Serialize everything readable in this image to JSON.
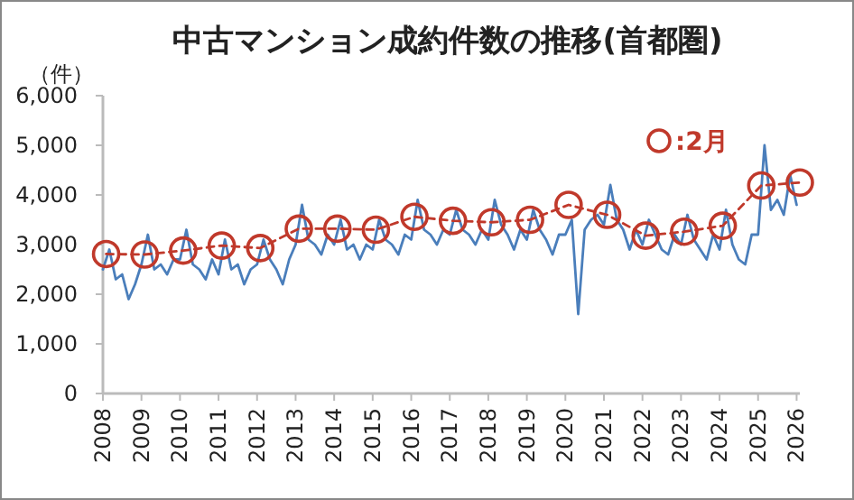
{
  "chart_data": {
    "type": "line",
    "title": "中古マンション成約件数の推移(首都圏)",
    "ylabel": "（件）",
    "xlim": [
      "2008-01",
      "2026-02"
    ],
    "xticks": [
      "2008",
      "2009",
      "2010",
      "2011",
      "2012",
      "2013",
      "2014",
      "2015",
      "2016",
      "2017",
      "2018",
      "2019",
      "2020",
      "2021",
      "2022",
      "2023",
      "2024",
      "2025",
      "2026"
    ],
    "ylim": [
      0,
      6000
    ],
    "yticks": [
      {
        "value": 0,
        "label": "0"
      },
      {
        "value": 1000,
        "label": "1,000"
      },
      {
        "value": 2000,
        "label": "2,000"
      },
      {
        "value": 3000,
        "label": "3,000"
      },
      {
        "value": 4000,
        "label": "4,000"
      },
      {
        "value": 5000,
        "label": "5,000"
      },
      {
        "value": 6000,
        "label": "6,000"
      }
    ],
    "grid": false,
    "legend": "top right",
    "series": [
      {
        "type": "line",
        "color": "#4a7ebb",
        "marker": "none",
        "line_style": "solid",
        "x": [
          "2008-01",
          "2008-03",
          "2008-05",
          "2008-07",
          "2008-09",
          "2008-11",
          "2009-01",
          "2009-03",
          "2009-05",
          "2009-07",
          "2009-09",
          "2009-11",
          "2010-01",
          "2010-03",
          "2010-05",
          "2010-07",
          "2010-09",
          "2010-11",
          "2011-01",
          "2011-03",
          "2011-05",
          "2011-07",
          "2011-09",
          "2011-11",
          "2012-01",
          "2012-03",
          "2012-05",
          "2012-07",
          "2012-09",
          "2012-11",
          "2013-01",
          "2013-03",
          "2013-05",
          "2013-07",
          "2013-09",
          "2013-11",
          "2014-01",
          "2014-03",
          "2014-05",
          "2014-07",
          "2014-09",
          "2014-11",
          "2015-01",
          "2015-03",
          "2015-05",
          "2015-07",
          "2015-09",
          "2015-11",
          "2016-01",
          "2016-03",
          "2016-05",
          "2016-07",
          "2016-09",
          "2016-11",
          "2017-01",
          "2017-03",
          "2017-05",
          "2017-07",
          "2017-09",
          "2017-11",
          "2018-01",
          "2018-03",
          "2018-05",
          "2018-07",
          "2018-09",
          "2018-11",
          "2019-01",
          "2019-03",
          "2019-05",
          "2019-07",
          "2019-09",
          "2019-11",
          "2020-01",
          "2020-03",
          "2020-05",
          "2020-07",
          "2020-09",
          "2020-11",
          "2021-01",
          "2021-03",
          "2021-05",
          "2021-07",
          "2021-09",
          "2021-11",
          "2022-01",
          "2022-03",
          "2022-05",
          "2022-07",
          "2022-09",
          "2022-11",
          "2023-01",
          "2023-03",
          "2023-05",
          "2023-07",
          "2023-09",
          "2023-11",
          "2024-01",
          "2024-03",
          "2024-05",
          "2024-07",
          "2024-09",
          "2024-11",
          "2025-01",
          "2025-03",
          "2025-05",
          "2025-07",
          "2025-09",
          "2025-11",
          "2026-01"
        ],
        "values": [
          2500,
          2900,
          2300,
          2400,
          1900,
          2200,
          2600,
          3200,
          2500,
          2600,
          2400,
          2700,
          2700,
          3300,
          2600,
          2500,
          2300,
          2700,
          2400,
          3100,
          2500,
          2600,
          2200,
          2500,
          2600,
          3100,
          2700,
          2500,
          2200,
          2700,
          3000,
          3800,
          3100,
          3000,
          2800,
          3200,
          3000,
          3500,
          2900,
          3000,
          2700,
          3000,
          2900,
          3500,
          3100,
          3000,
          2800,
          3200,
          3100,
          3900,
          3300,
          3200,
          3000,
          3300,
          3200,
          3700,
          3300,
          3200,
          3000,
          3300,
          3100,
          3900,
          3400,
          3200,
          2900,
          3300,
          3100,
          3700,
          3300,
          3100,
          2800,
          3200,
          3200,
          3500,
          1600,
          3300,
          3500,
          3600,
          3400,
          4200,
          3500,
          3300,
          2900,
          3300,
          3000,
          3500,
          3200,
          2900,
          2800,
          3200,
          3000,
          3600,
          3100,
          2900,
          2700,
          3200,
          2900,
          3700,
          3000,
          2700,
          2600,
          3200,
          3200,
          5000,
          3700,
          3900,
          3600,
          4400,
          3800
        ]
      },
      {
        "type": "line",
        "name": ":2月",
        "color": "#c0392b",
        "marker": "circle",
        "line_style": "dashed",
        "x": [
          "2008-02",
          "2009-02",
          "2010-02",
          "2011-02",
          "2012-02",
          "2013-02",
          "2014-02",
          "2015-02",
          "2016-02",
          "2017-02",
          "2018-02",
          "2019-02",
          "2020-02",
          "2021-02",
          "2022-02",
          "2023-02",
          "2024-02",
          "2025-02",
          "2026-02"
        ],
        "values": [
          2810,
          2800,
          2880,
          2980,
          2930,
          3320,
          3320,
          3300,
          3560,
          3480,
          3450,
          3500,
          3800,
          3600,
          3180,
          3260,
          3380,
          4190,
          4250
        ]
      }
    ]
  }
}
